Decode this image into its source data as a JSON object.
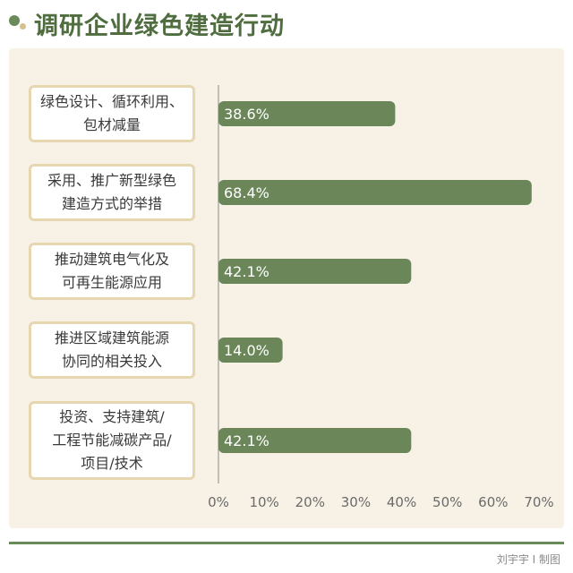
{
  "title": "调研企业绿色建造行动",
  "credit": "刘宇宇 I 制图",
  "colors": {
    "bar": "#6b875a",
    "title": "#4f6d3e",
    "panel": "#f7f1e6",
    "box_border": "#e6d7b1"
  },
  "chart_data": {
    "type": "bar",
    "orientation": "horizontal",
    "categories": [
      [
        "绿色设计、循环利用、",
        "包材减量"
      ],
      [
        "采用、推广新型绿色",
        "建造方式的举措"
      ],
      [
        "推动建筑电气化及",
        "可再生能源应用"
      ],
      [
        "推进区域建筑能源",
        "协同的相关投入"
      ],
      [
        "投资、支持建筑/",
        "工程节能减碳产品/",
        "项目/技术"
      ]
    ],
    "values": [
      38.6,
      68.4,
      42.1,
      14.0,
      42.1
    ],
    "value_labels": [
      "38.6%",
      "68.4%",
      "42.1%",
      "14.0%",
      "42.1%"
    ],
    "xlim": [
      0,
      70
    ],
    "xticks": [
      0,
      10,
      20,
      30,
      40,
      50,
      60,
      70
    ],
    "xtick_labels": [
      "0%",
      "10%",
      "20%",
      "30%",
      "40%",
      "50%",
      "60%",
      "70%"
    ],
    "grid": false
  }
}
